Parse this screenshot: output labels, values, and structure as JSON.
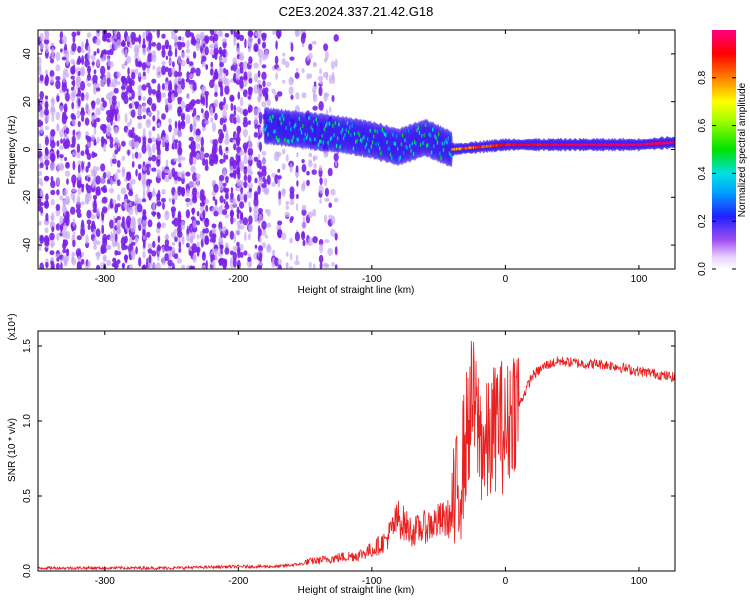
{
  "title": "C2E3.2024.337.21.42.G18",
  "colors": {
    "spectrogram_background": "#7b1fe0",
    "snr_line": "#e82020",
    "axis": "#000000"
  },
  "colorbar": {
    "label": "Normalized spectral amplitude",
    "range": [
      0,
      1
    ],
    "ticks": [
      "0.0",
      "0.2",
      "0.4",
      "0.6",
      "0.8"
    ],
    "tick_values": [
      0.0,
      0.2,
      0.4,
      0.6,
      0.8
    ],
    "colormap": "rainbow (magenta-white low, blue, cyan, green, yellow, red, magenta high)"
  },
  "chart_data": [
    {
      "type": "heatmap",
      "name": "spectrogram",
      "title": "C2E3.2024.337.21.42.G18",
      "xlabel": "Height of straight line (km)",
      "ylabel": "Frequency (Hz)",
      "xlim": [
        -350,
        127
      ],
      "ylim": [
        -50,
        50
      ],
      "x_ticks": [
        "-300",
        "-200",
        "-100",
        "0",
        "100"
      ],
      "x_tick_values": [
        -300,
        -200,
        -100,
        0,
        100
      ],
      "y_ticks": [
        "-40",
        "-20",
        "0",
        "20",
        "40"
      ],
      "y_tick_values": [
        -40,
        -20,
        0,
        20,
        40
      ],
      "regions": [
        {
          "description": "noise",
          "x_range": [
            -350,
            -180
          ],
          "freq_range": [
            -50,
            50
          ],
          "amplitude": 0.05
        },
        {
          "description": "sparse noise",
          "x_range": [
            -180,
            -125
          ],
          "freq_range": [
            -50,
            50
          ],
          "amplitude": 0.03
        },
        {
          "description": "signal track",
          "points": [
            [
              -180,
              10
            ],
            [
              -150,
              8
            ],
            [
              -120,
              6
            ],
            [
              -100,
              4
            ],
            [
              -80,
              1
            ],
            [
              -60,
              5
            ],
            [
              -40,
              0
            ],
            [
              -20,
              1
            ],
            [
              0,
              2
            ],
            [
              50,
              2
            ],
            [
              100,
              2
            ],
            [
              127,
              3
            ]
          ],
          "amplitude_rising_to": 0.95
        }
      ]
    },
    {
      "type": "line",
      "name": "snr",
      "title": "",
      "xlabel": "Height of straight line (km)",
      "ylabel": "SNR (10 * v/v)",
      "y_multiplier": "(x10⁴)",
      "xlim": [
        -350,
        127
      ],
      "ylim": [
        0,
        1.6
      ],
      "x_ticks": [
        "-300",
        "-200",
        "-100",
        "0",
        "100"
      ],
      "x_tick_values": [
        -300,
        -200,
        -100,
        0,
        100
      ],
      "y_ticks": [
        "0.0",
        "0.5",
        "1.0",
        "1.5"
      ],
      "y_tick_values": [
        0.0,
        0.5,
        1.0,
        1.5
      ],
      "series": [
        {
          "x": [
            -350,
            -300,
            -250,
            -200,
            -170,
            -150,
            -130,
            -110,
            -100,
            -90,
            -80,
            -70,
            -60,
            -50,
            -40,
            -35,
            -30,
            -25,
            -20,
            -15,
            -10,
            -5,
            0,
            5,
            10,
            15,
            20,
            30,
            40,
            50,
            60,
            70,
            80,
            90,
            100,
            110,
            120,
            127
          ],
          "y": [
            0.02,
            0.02,
            0.02,
            0.03,
            0.03,
            0.05,
            0.07,
            0.09,
            0.12,
            0.17,
            0.3,
            0.22,
            0.25,
            0.28,
            0.3,
            0.5,
            0.8,
            1.1,
            0.9,
            0.75,
            0.85,
            1.0,
            0.85,
            1.05,
            1.1,
            1.2,
            1.3,
            1.37,
            1.4,
            1.39,
            1.38,
            1.38,
            1.37,
            1.35,
            1.33,
            1.32,
            1.3,
            1.29
          ]
        }
      ]
    }
  ]
}
